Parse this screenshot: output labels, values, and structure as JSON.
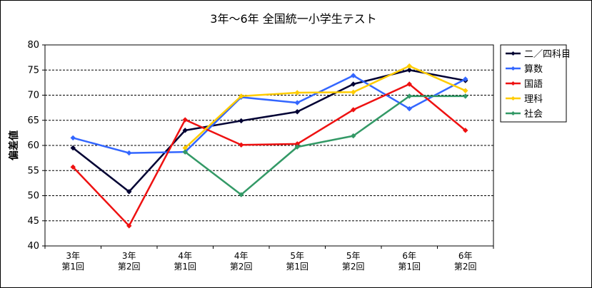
{
  "chart_data": {
    "type": "line",
    "title": "3年〜6年 全国統一小学生テスト",
    "xlabel": "",
    "ylabel": "偏差値",
    "ylim": [
      40,
      80
    ],
    "yticks": [
      40,
      45,
      50,
      55,
      60,
      65,
      70,
      75,
      80
    ],
    "grid": "horizontal dashed",
    "legend_position": "right",
    "categories": [
      [
        "3年",
        "第1回"
      ],
      [
        "3年",
        "第2回"
      ],
      [
        "4年",
        "第1回"
      ],
      [
        "4年",
        "第2回"
      ],
      [
        "5年",
        "第1回"
      ],
      [
        "5年",
        "第2回"
      ],
      [
        "6年",
        "第1回"
      ],
      [
        "6年",
        "第2回"
      ]
    ],
    "series": [
      {
        "name": "二／四科目",
        "color": "#000033",
        "marker": "diamond",
        "values": [
          59.5,
          50.8,
          63.0,
          64.9,
          66.7,
          72.2,
          75.0,
          72.9
        ]
      },
      {
        "name": "算数",
        "color": "#3366ff",
        "marker": "diamond",
        "values": [
          61.5,
          58.5,
          58.7,
          69.6,
          68.5,
          73.9,
          67.3,
          73.2
        ]
      },
      {
        "name": "国語",
        "color": "#ee1111",
        "marker": "diamond",
        "values": [
          55.7,
          44.0,
          65.1,
          60.1,
          60.3,
          67.1,
          72.2,
          63.0
        ]
      },
      {
        "name": "理科",
        "color": "#ffcc00",
        "marker": "diamond",
        "values": [
          null,
          null,
          59.5,
          69.8,
          70.5,
          70.6,
          75.8,
          70.9
        ]
      },
      {
        "name": "社会",
        "color": "#339966",
        "marker": "diamond",
        "values": [
          null,
          null,
          58.7,
          50.2,
          59.7,
          61.9,
          69.8,
          69.8
        ]
      }
    ]
  }
}
